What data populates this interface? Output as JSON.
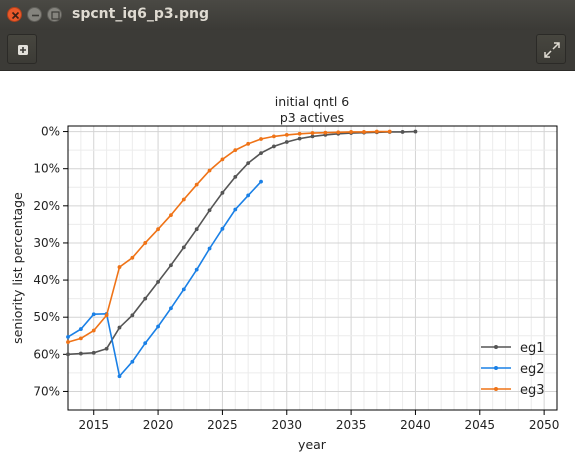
{
  "window": {
    "title": "spcnt_iq6_p3.png"
  },
  "colors": {
    "eg1": "#555555",
    "eg2": "#1a80e6",
    "eg3": "#ef7317"
  },
  "chart_data": {
    "type": "line",
    "title": "initial qntl 6",
    "subtitle": "p3 actives",
    "xlabel": "year",
    "ylabel": "seniority list percentage",
    "xlim": [
      2013,
      2051
    ],
    "ylim": [
      0.75,
      -0.015
    ],
    "y_inverted": true,
    "grid": true,
    "legend_position": "lower-right",
    "x_ticks": [
      2015,
      2020,
      2025,
      2030,
      2035,
      2040,
      2045,
      2050
    ],
    "y_ticks": [
      0,
      0.1,
      0.2,
      0.3,
      0.4,
      0.5,
      0.6,
      0.7
    ],
    "y_tick_labels": [
      "0%",
      "10%",
      "20%",
      "30%",
      "40%",
      "50%",
      "60%",
      "70%"
    ],
    "series": [
      {
        "name": "eg1",
        "x": [
          2013,
          2014,
          2015,
          2016,
          2017,
          2018,
          2019,
          2020,
          2021,
          2022,
          2023,
          2024,
          2025,
          2026,
          2027,
          2028,
          2029,
          2030,
          2031,
          2032,
          2033,
          2034,
          2035,
          2036,
          2037,
          2038,
          2039,
          2040
        ],
        "y": [
          0.6,
          0.598,
          0.596,
          0.585,
          0.528,
          0.495,
          0.45,
          0.405,
          0.36,
          0.312,
          0.263,
          0.212,
          0.165,
          0.122,
          0.085,
          0.058,
          0.04,
          0.028,
          0.019,
          0.013,
          0.009,
          0.006,
          0.004,
          0.003,
          0.002,
          0.001,
          0.001,
          0.0
        ]
      },
      {
        "name": "eg2",
        "x": [
          2013,
          2014,
          2015,
          2016,
          2017,
          2018,
          2019,
          2020,
          2021,
          2022,
          2023,
          2024,
          2025,
          2026,
          2027,
          2028
        ],
        "y": [
          0.553,
          0.532,
          0.492,
          0.491,
          0.659,
          0.62,
          0.57,
          0.525,
          0.476,
          0.425,
          0.372,
          0.315,
          0.262,
          0.21,
          0.172,
          0.135
        ]
      },
      {
        "name": "eg3",
        "x": [
          2013,
          2014,
          2015,
          2016,
          2017,
          2018,
          2019,
          2020,
          2021,
          2022,
          2023,
          2024,
          2025,
          2026,
          2027,
          2028,
          2029,
          2030,
          2031,
          2032,
          2033,
          2034,
          2035,
          2036,
          2037,
          2038
        ],
        "y": [
          0.567,
          0.557,
          0.536,
          0.495,
          0.365,
          0.34,
          0.3,
          0.263,
          0.225,
          0.183,
          0.143,
          0.105,
          0.075,
          0.05,
          0.033,
          0.02,
          0.013,
          0.009,
          0.006,
          0.004,
          0.003,
          0.002,
          0.001,
          0.001,
          0.0,
          0.0
        ]
      }
    ]
  }
}
